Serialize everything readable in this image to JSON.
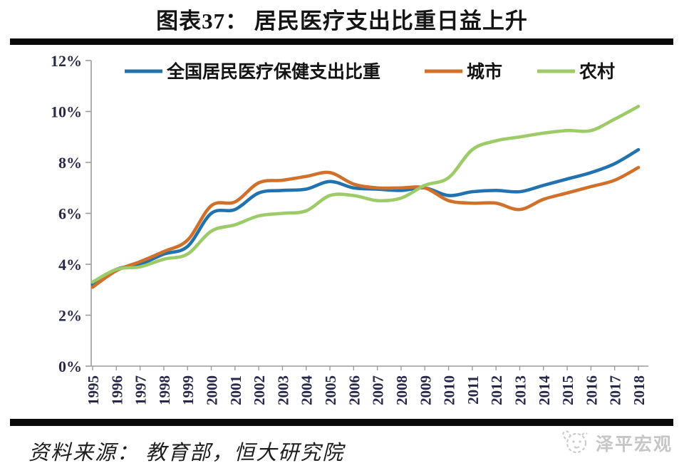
{
  "title": "图表37： 居民医疗支出比重日益上升",
  "footer": {
    "source": "资料来源： 教育部，恒大研究院",
    "watermark": "泽平宏观"
  },
  "colors": {
    "national": "#2172AE",
    "city": "#D0702B",
    "rural": "#9CCB67",
    "axis": "#9c9c9c",
    "tick_label": "#28284a",
    "rule": "#0a0a0a",
    "watermark": "#c6c6c6"
  },
  "chart_data": {
    "type": "line",
    "title": "图表37： 居民医疗支出比重日益上升",
    "xlabel": "",
    "ylabel": "",
    "ylim": [
      0,
      12
    ],
    "grid": false,
    "legend_position": "top-inside",
    "y_ticks": [
      "0%",
      "2%",
      "4%",
      "6%",
      "8%",
      "10%",
      "12%"
    ],
    "x": [
      1995,
      1996,
      1997,
      1998,
      1999,
      2000,
      2001,
      2002,
      2003,
      2004,
      2005,
      2006,
      2007,
      2008,
      2009,
      2010,
      2011,
      2012,
      2013,
      2014,
      2015,
      2016,
      2017,
      2018
    ],
    "series": [
      {
        "name": "全国居民医疗保健支出比重",
        "color_key": "national",
        "values": [
          3.2,
          3.8,
          4.0,
          4.4,
          4.7,
          6.0,
          6.15,
          6.8,
          6.9,
          6.95,
          7.25,
          7.0,
          6.95,
          6.9,
          7.0,
          6.7,
          6.85,
          6.9,
          6.85,
          7.1,
          7.35,
          7.6,
          7.95,
          8.5
        ]
      },
      {
        "name": "城市",
        "color_key": "city",
        "values": [
          3.1,
          3.75,
          4.1,
          4.5,
          4.95,
          6.3,
          6.45,
          7.2,
          7.3,
          7.45,
          7.6,
          7.15,
          7.0,
          7.0,
          7.0,
          6.5,
          6.4,
          6.4,
          6.15,
          6.55,
          6.8,
          7.05,
          7.3,
          7.8
        ]
      },
      {
        "name": "农村",
        "color_key": "rural",
        "values": [
          3.3,
          3.8,
          3.9,
          4.2,
          4.4,
          5.3,
          5.55,
          5.9,
          6.0,
          6.1,
          6.7,
          6.7,
          6.5,
          6.6,
          7.1,
          7.4,
          8.5,
          8.85,
          9.0,
          9.15,
          9.25,
          9.25,
          9.7,
          10.2
        ]
      }
    ]
  }
}
